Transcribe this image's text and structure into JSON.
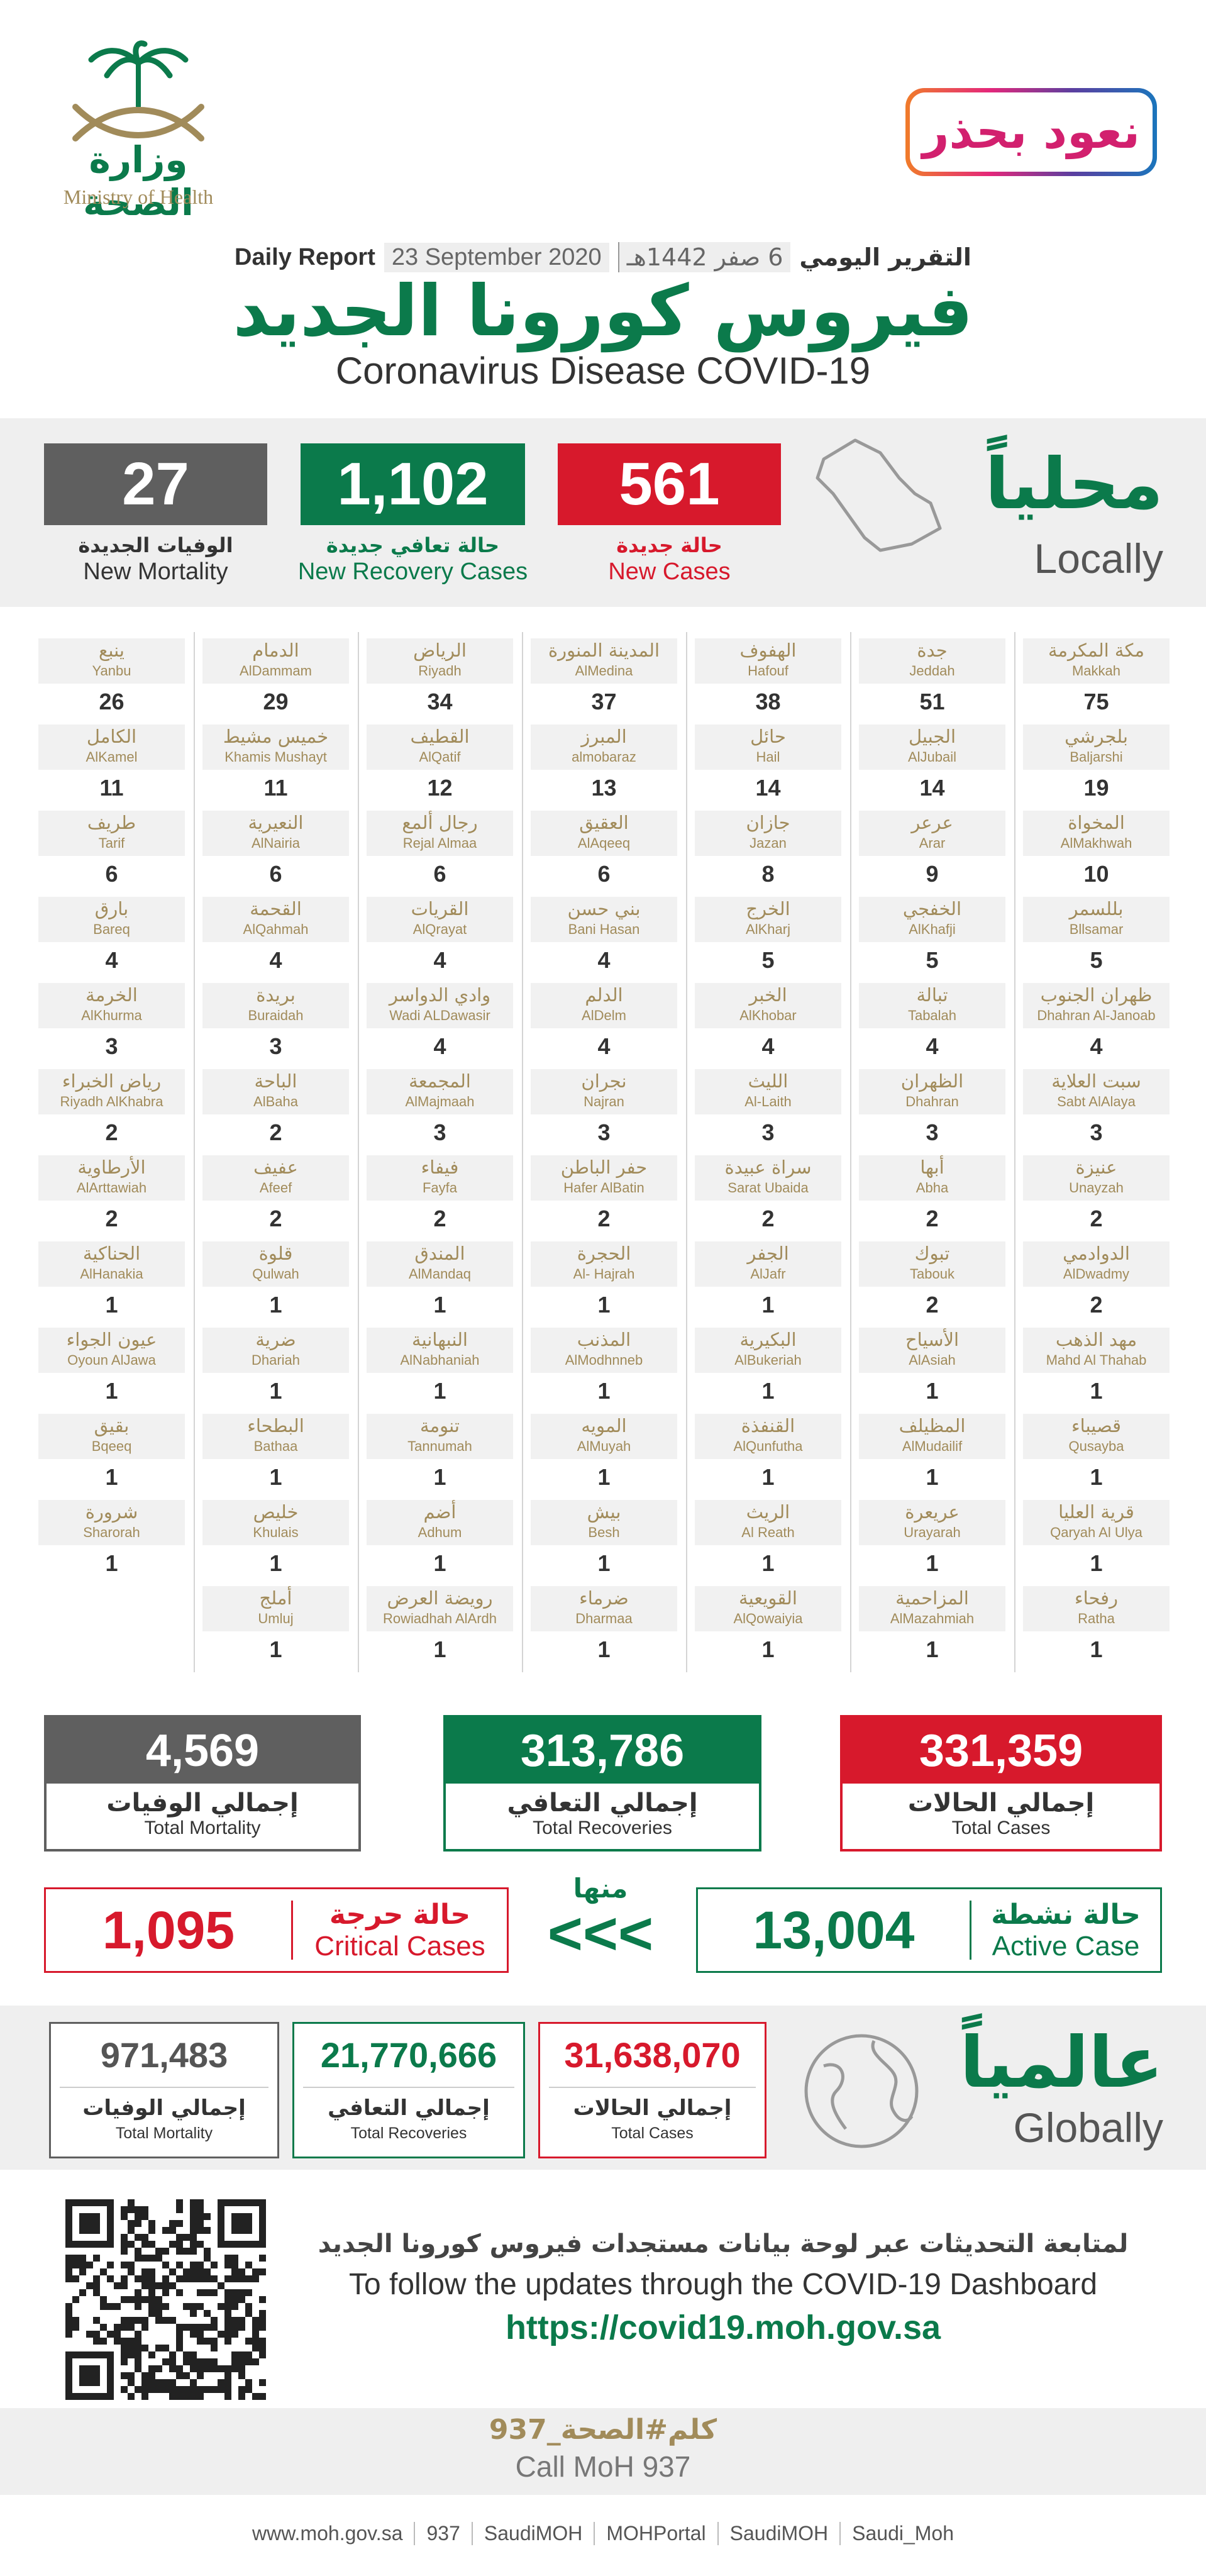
{
  "header": {
    "ministry_ar": "وزارة الصحة",
    "ministry_en": "Ministry of Health",
    "campaign": "نعود بحذر",
    "report_ar": "التقرير اليومي",
    "date_hijri": "6 صفر 1442هـ",
    "date_en": "23 September 2020",
    "report_en": "Daily Report",
    "title_ar": "فيروس كورونا الجديد",
    "title_en": "Coronavirus Disease COVID-19"
  },
  "local": {
    "label_ar": "محلياً",
    "label_en": "Locally",
    "cards": [
      {
        "value": "561",
        "ar": "حالة جديدة",
        "en": "New Cases"
      },
      {
        "value": "1,102",
        "ar": "حالة تعافي جديدة",
        "en": "New Recovery Cases"
      },
      {
        "value": "27",
        "ar": "الوفيات الجديدة",
        "en": "New Mortality"
      }
    ],
    "cities": [
      {
        "ar": "مكة المكرمة",
        "en": "Makkah",
        "cases": 75
      },
      {
        "ar": "جدة",
        "en": "Jeddah",
        "cases": 51
      },
      {
        "ar": "الهفوف",
        "en": "Hafouf",
        "cases": 38
      },
      {
        "ar": "المدينة المنورة",
        "en": "AlMedina",
        "cases": 37
      },
      {
        "ar": "الرياض",
        "en": "Riyadh",
        "cases": 34
      },
      {
        "ar": "الدمام",
        "en": "AlDammam",
        "cases": 29
      },
      {
        "ar": "ينبع",
        "en": "Yanbu",
        "cases": 26
      },
      {
        "ar": "بلجرشي",
        "en": "Baljarshi",
        "cases": 19
      },
      {
        "ar": "الجبيل",
        "en": "AlJubail",
        "cases": 14
      },
      {
        "ar": "حائل",
        "en": "Hail",
        "cases": 14
      },
      {
        "ar": "المبرز",
        "en": "almobaraz",
        "cases": 13
      },
      {
        "ar": "القطيف",
        "en": "AlQatif",
        "cases": 12
      },
      {
        "ar": "خميس مشيط",
        "en": "Khamis Mushayt",
        "cases": 11
      },
      {
        "ar": "الكامل",
        "en": "AlKamel",
        "cases": 11
      },
      {
        "ar": "المخواة",
        "en": "AlMakhwah",
        "cases": 10
      },
      {
        "ar": "عرعر",
        "en": "Arar",
        "cases": 9
      },
      {
        "ar": "جازان",
        "en": "Jazan",
        "cases": 8
      },
      {
        "ar": "العقيق",
        "en": "AlAqeeq",
        "cases": 6
      },
      {
        "ar": "رجال ألمع",
        "en": "Rejal Almaa",
        "cases": 6
      },
      {
        "ar": "النعيرية",
        "en": "AlNairia",
        "cases": 6
      },
      {
        "ar": "طريف",
        "en": "Tarif",
        "cases": 6
      },
      {
        "ar": "بللسمر",
        "en": "Bllsamar",
        "cases": 5
      },
      {
        "ar": "الخفجي",
        "en": "AlKhafji",
        "cases": 5
      },
      {
        "ar": "الخرج",
        "en": "AlKharj",
        "cases": 5
      },
      {
        "ar": "بني حسن",
        "en": "Bani Hasan",
        "cases": 4
      },
      {
        "ar": "القريات",
        "en": "AlQrayat",
        "cases": 4
      },
      {
        "ar": "القحمة",
        "en": "AlQahmah",
        "cases": 4
      },
      {
        "ar": "بارق",
        "en": "Bareq",
        "cases": 4
      },
      {
        "ar": "ظهران الجنوب",
        "en": "Dhahran Al-Janoab",
        "cases": 4
      },
      {
        "ar": "تبالة",
        "en": "Tabalah",
        "cases": 4
      },
      {
        "ar": "الخبر",
        "en": "AlKhobar",
        "cases": 4
      },
      {
        "ar": "الدلم",
        "en": "AlDelm",
        "cases": 4
      },
      {
        "ar": "وادي الدواسر",
        "en": "Wadi ALDawasir",
        "cases": 4
      },
      {
        "ar": "بريدة",
        "en": "Buraidah",
        "cases": 3
      },
      {
        "ar": "الخرمة",
        "en": "AlKhurma",
        "cases": 3
      },
      {
        "ar": "سبت العلاية",
        "en": "Sabt AlAlaya",
        "cases": 3
      },
      {
        "ar": "الظهران",
        "en": "Dhahran",
        "cases": 3
      },
      {
        "ar": "الليث",
        "en": "Al-Laith",
        "cases": 3
      },
      {
        "ar": "نجران",
        "en": "Najran",
        "cases": 3
      },
      {
        "ar": "المجمعة",
        "en": "AlMajmaah",
        "cases": 3
      },
      {
        "ar": "الباحة",
        "en": "AlBaha",
        "cases": 2
      },
      {
        "ar": "رياض الخبراء",
        "en": "Riyadh AlKhabra",
        "cases": 2
      },
      {
        "ar": "عنيزة",
        "en": "Unayzah",
        "cases": 2
      },
      {
        "ar": "أبها",
        "en": "Abha",
        "cases": 2
      },
      {
        "ar": "سراة عبيدة",
        "en": "Sarat Ubaida",
        "cases": 2
      },
      {
        "ar": "حفر الباطن",
        "en": "Hafer AlBatin",
        "cases": 2
      },
      {
        "ar": "فيفاء",
        "en": "Fayfa",
        "cases": 2
      },
      {
        "ar": "عفيف",
        "en": "Afeef",
        "cases": 2
      },
      {
        "ar": "الأرطاوية",
        "en": "AlArttawiah",
        "cases": 2
      },
      {
        "ar": "الدوادمي",
        "en": "AlDwadmy",
        "cases": 2
      },
      {
        "ar": "تبوك",
        "en": "Tabouk",
        "cases": 2
      },
      {
        "ar": "الجفر",
        "en": "AlJafr",
        "cases": 1
      },
      {
        "ar": "الحجرة",
        "en": "Al- Hajrah",
        "cases": 1
      },
      {
        "ar": "المندق",
        "en": "AlMandaq",
        "cases": 1
      },
      {
        "ar": "قلوة",
        "en": "Qulwah",
        "cases": 1
      },
      {
        "ar": "الحناكية",
        "en": "AlHanakia",
        "cases": 1
      },
      {
        "ar": "مهد الذهب",
        "en": "Mahd Al Thahab",
        "cases": 1
      },
      {
        "ar": "الأسياح",
        "en": "AlAsiah",
        "cases": 1
      },
      {
        "ar": "البكيرية",
        "en": "AlBukeriah",
        "cases": 1
      },
      {
        "ar": "المذنب",
        "en": "AlModhnneb",
        "cases": 1
      },
      {
        "ar": "النبهانية",
        "en": "AlNabhaniah",
        "cases": 1
      },
      {
        "ar": "ضرية",
        "en": "Dhariah",
        "cases": 1
      },
      {
        "ar": "عيون الجواء",
        "en": "Oyoun AlJawa",
        "cases": 1
      },
      {
        "ar": "قصيباء",
        "en": "Qusayba",
        "cases": 1
      },
      {
        "ar": "المظيلف",
        "en": "AlMudailif",
        "cases": 1
      },
      {
        "ar": "القنفذة",
        "en": "AlQunfutha",
        "cases": 1
      },
      {
        "ar": "المويه",
        "en": "AlMuyah",
        "cases": 1
      },
      {
        "ar": "تنومة",
        "en": "Tannumah",
        "cases": 1
      },
      {
        "ar": "البطحاء",
        "en": "Bathaa",
        "cases": 1
      },
      {
        "ar": "بقيق",
        "en": "Bqeeq",
        "cases": 1
      },
      {
        "ar": "قرية العليا",
        "en": "Qaryah Al Ulya",
        "cases": 1
      },
      {
        "ar": "عريعرة",
        "en": "Urayarah",
        "cases": 1
      },
      {
        "ar": "الريث",
        "en": "Al Reath",
        "cases": 1
      },
      {
        "ar": "بيش",
        "en": "Besh",
        "cases": 1
      },
      {
        "ar": "أضم",
        "en": "Adhum",
        "cases": 1
      },
      {
        "ar": "خليص",
        "en": "Khulais",
        "cases": 1
      },
      {
        "ar": "شرورة",
        "en": "Sharorah",
        "cases": 1
      },
      {
        "ar": "رفحاء",
        "en": "Ratha",
        "cases": 1
      },
      {
        "ar": "المزاحمية",
        "en": "AlMazahmiah",
        "cases": 1
      },
      {
        "ar": "القويعية",
        "en": "AlQowaiyia",
        "cases": 1
      },
      {
        "ar": "ضرماء",
        "en": "Dharmaa",
        "cases": 1
      },
      {
        "ar": "رويضة العرض",
        "en": "Rowiadhah AlArdh",
        "cases": 1
      },
      {
        "ar": "أملج",
        "en": "Umluj",
        "cases": 1
      }
    ]
  },
  "totals": [
    {
      "value": "331,359",
      "ar": "إجمالي الحالات",
      "en": "Total Cases"
    },
    {
      "value": "313,786",
      "ar": "إجمالي التعافي",
      "en": "Total Recoveries"
    },
    {
      "value": "4,569",
      "ar": "إجمالي الوفيات",
      "en": "Total Mortality"
    }
  ],
  "active": {
    "value": "13,004",
    "ar": "حالة نشطة",
    "en": "Active Case"
  },
  "of_which": "منها",
  "arrows": "<<<",
  "critical": {
    "value": "1,095",
    "ar": "حالة حرجة",
    "en": "Critical Cases"
  },
  "global": {
    "label_ar": "عالمياً",
    "label_en": "Globally",
    "cards": [
      {
        "value": "31,638,070",
        "ar": "إجمالي الحالات",
        "en": "Total Cases"
      },
      {
        "value": "21,770,666",
        "ar": "إجمالي التعافي",
        "en": "Total Recoveries"
      },
      {
        "value": "971,483",
        "ar": "إجمالي الوفيات",
        "en": "Total Mortality"
      }
    ]
  },
  "dashboard": {
    "ar": "لمتابعة التحديثات عبر لوحة بيانات مستجدات فيروس كورونا الجديد",
    "en": "To follow the updates through the COVID-19 Dashboard",
    "url": "https://covid19.moh.gov.sa"
  },
  "hotline": {
    "ar": "كلم#الصحة_937",
    "en": "Call MoH 937"
  },
  "footer": [
    "www.moh.gov.sa",
    "937",
    "SaudiMOH",
    "MOHPortal",
    "SaudiMOH",
    "Saudi_Moh"
  ]
}
